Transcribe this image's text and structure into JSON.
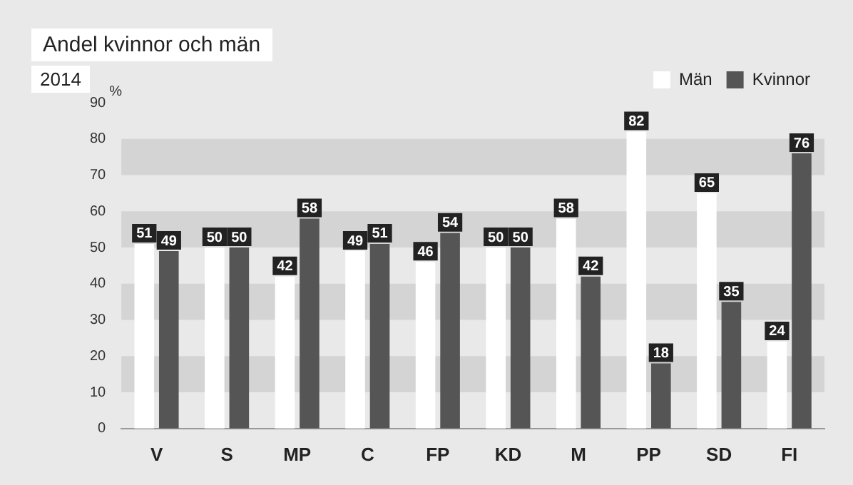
{
  "chart_data": {
    "type": "bar",
    "title": "Andel kvinnor och män",
    "subtitle": "2014",
    "ylabel": "%",
    "categories": [
      "V",
      "S",
      "MP",
      "C",
      "FP",
      "KD",
      "M",
      "PP",
      "SD",
      "FI"
    ],
    "series": [
      {
        "name": "Män",
        "color": "#ffffff",
        "values": [
          51,
          50,
          42,
          49,
          46,
          50,
          58,
          82,
          65,
          24
        ]
      },
      {
        "name": "Kvinnor",
        "color": "#555555",
        "values": [
          49,
          50,
          58,
          51,
          54,
          50,
          42,
          18,
          35,
          76
        ]
      }
    ],
    "ylim": [
      0,
      90
    ],
    "yticks": [
      0,
      10,
      20,
      30,
      40,
      50,
      60,
      70,
      80,
      90
    ],
    "bands": [
      {
        "axis": "y",
        "from": 10,
        "to": 20,
        "color": "#d4d4d4"
      },
      {
        "axis": "y",
        "from": 30,
        "to": 40,
        "color": "#d4d4d4"
      },
      {
        "axis": "y",
        "from": 50,
        "to": 60,
        "color": "#d4d4d4"
      },
      {
        "axis": "y",
        "from": 70,
        "to": 80,
        "color": "#d4d4d4"
      }
    ],
    "data_labels": true,
    "legend": "top right",
    "grid": false
  }
}
